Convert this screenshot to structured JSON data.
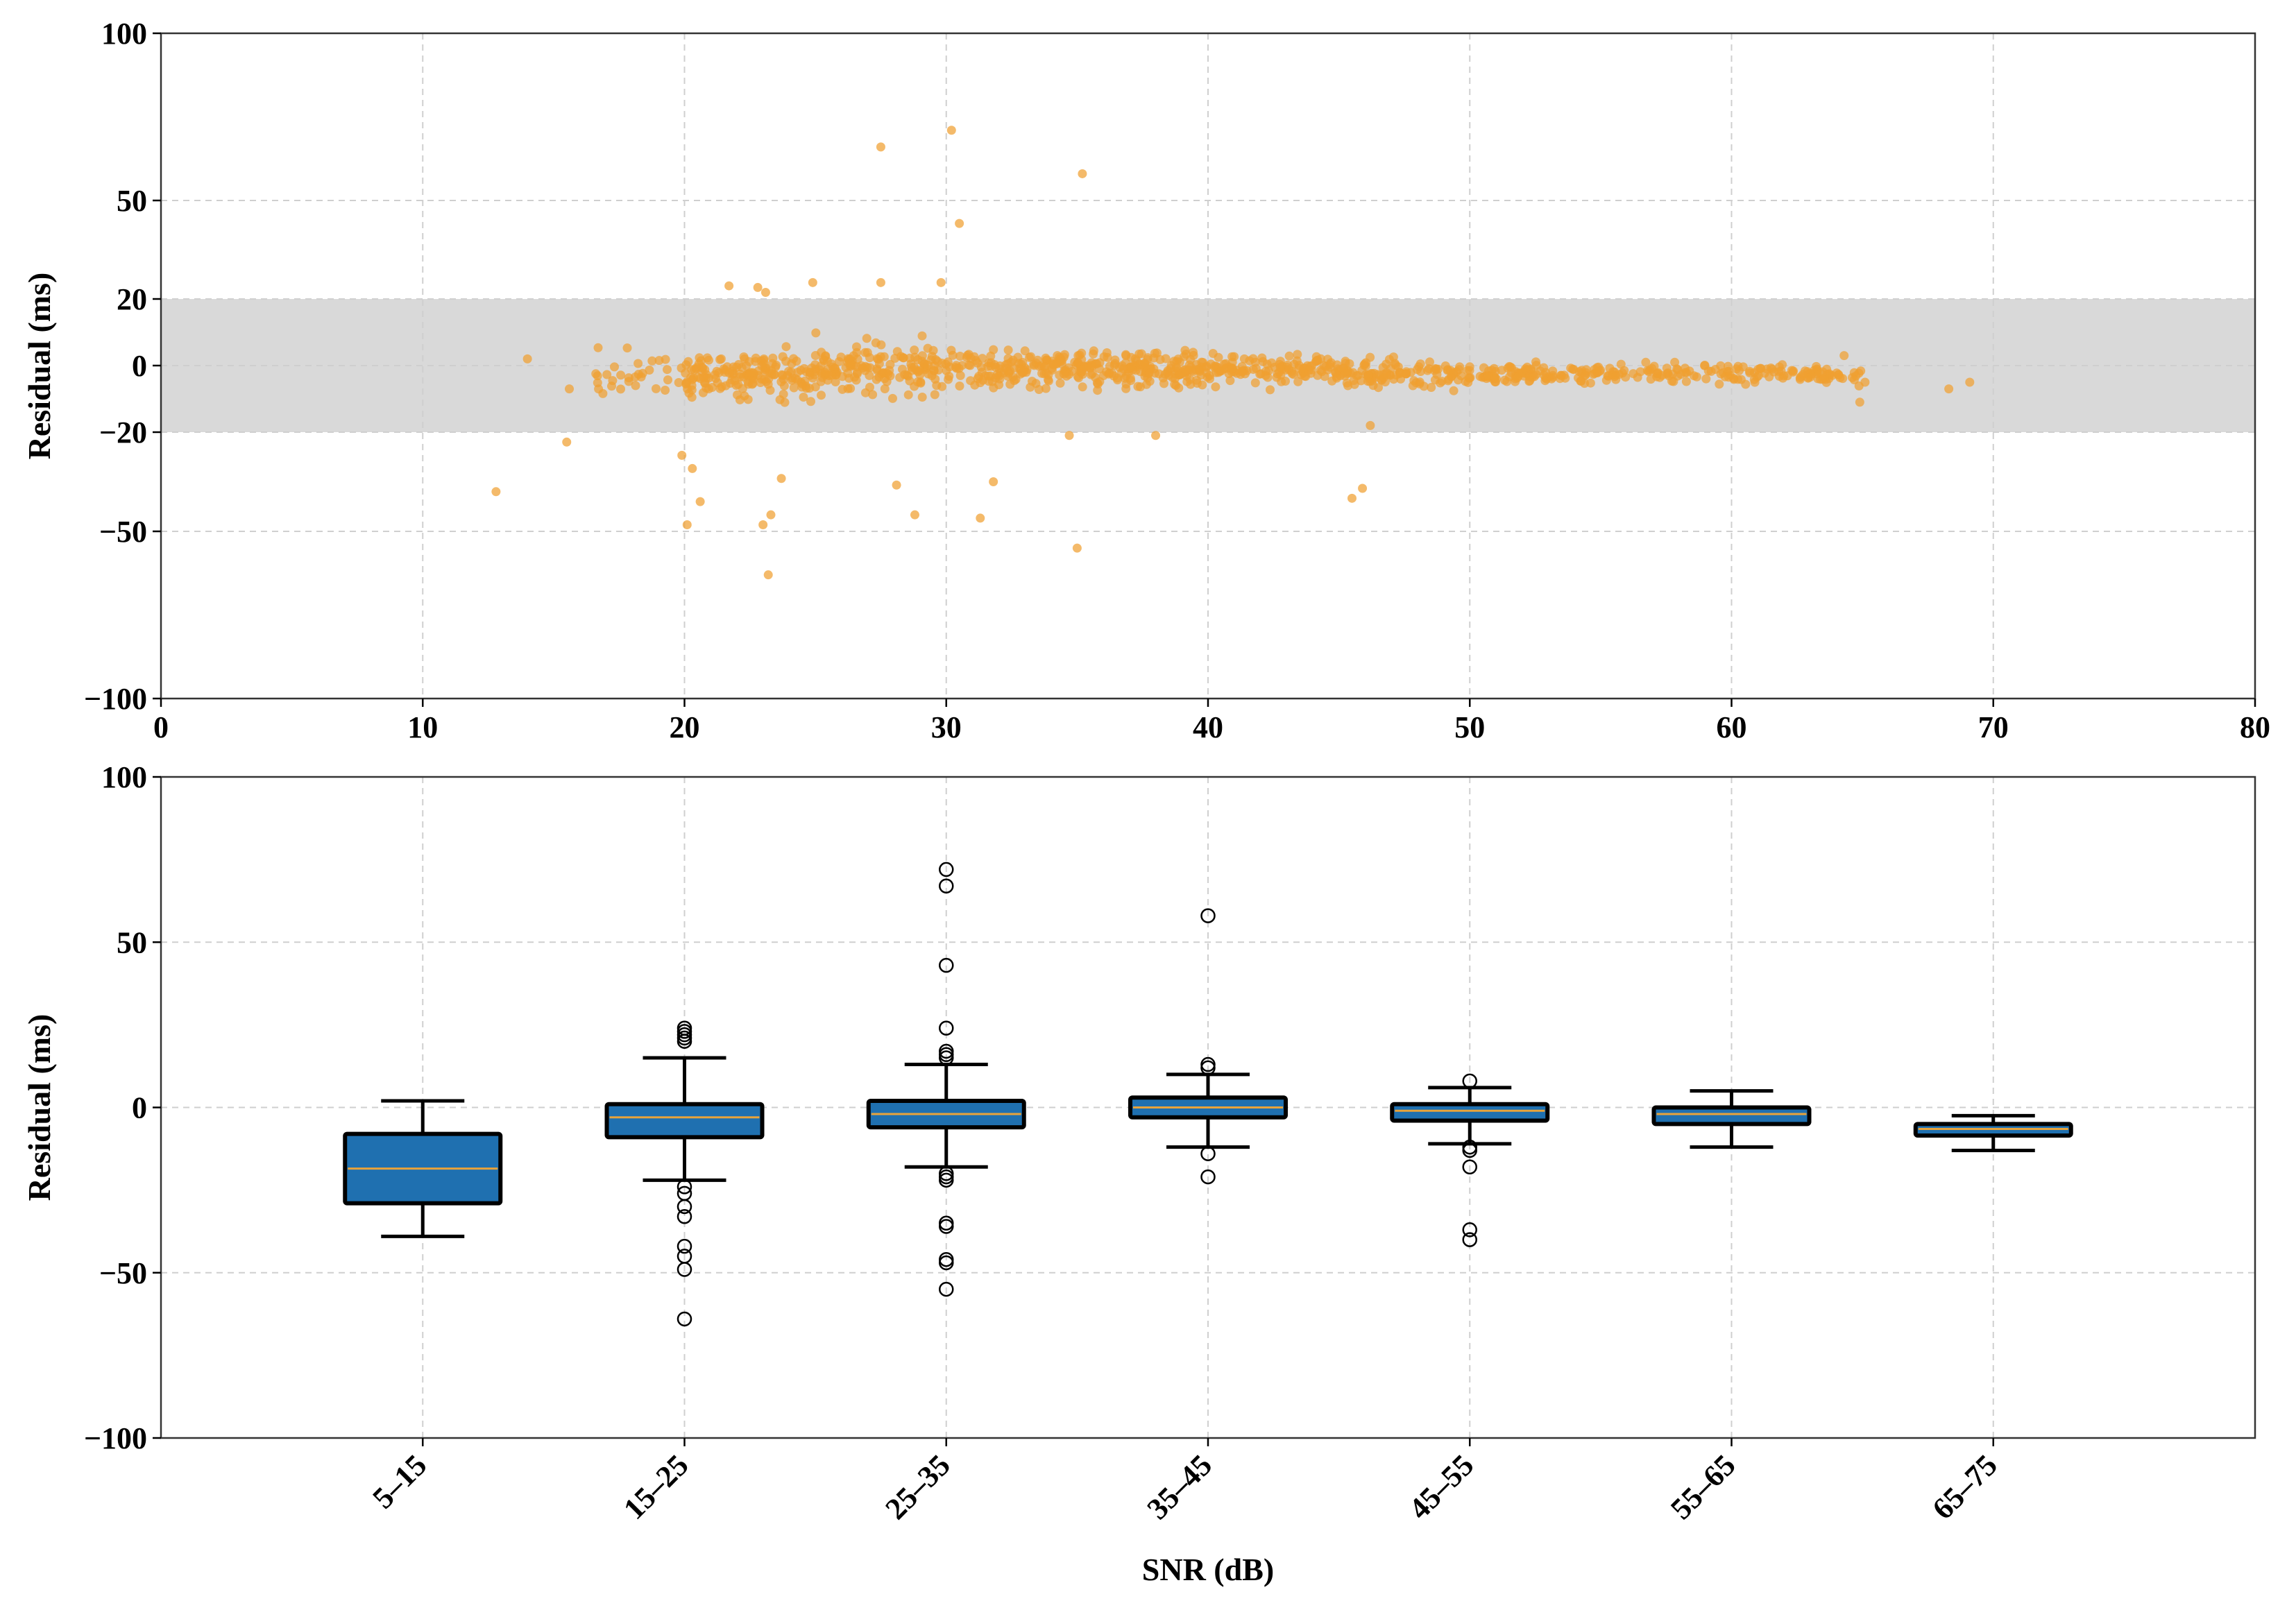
{
  "chart_data": [
    {
      "type": "scatter",
      "name": "residual-vs-snr",
      "xlim": [
        0,
        80
      ],
      "ylim": [
        -100,
        100
      ],
      "y_scale": "symlog-like (linear within ±20, compressed outside)",
      "xticks": [
        "0",
        "10",
        "20",
        "30",
        "40",
        "50",
        "60",
        "70",
        "80"
      ],
      "yticks": [
        "100",
        "50",
        "20",
        "0",
        "−20",
        "−50",
        "−100"
      ],
      "ytick_values": [
        100,
        50,
        20,
        0,
        -20,
        -50,
        -100
      ],
      "ylabel": "Residual (ms)",
      "xlabel": "",
      "grid": true,
      "band": {
        "from": -20,
        "to": 20,
        "color": "#d9d9d9"
      },
      "point_color": "#f0a030",
      "n_dense_points": 1150,
      "outliers": [
        [
          27.5,
          66
        ],
        [
          30.2,
          71
        ],
        [
          35.2,
          58
        ],
        [
          30.5,
          43
        ],
        [
          21.7,
          24
        ],
        [
          22.8,
          23.5
        ],
        [
          23.1,
          22
        ],
        [
          24.9,
          25
        ],
        [
          27.5,
          25
        ],
        [
          29.8,
          25
        ],
        [
          12.8,
          -38
        ],
        [
          15.5,
          -23
        ],
        [
          19.9,
          -27
        ],
        [
          20.3,
          -31
        ],
        [
          20.6,
          -41
        ],
        [
          20.1,
          -48
        ],
        [
          23.0,
          -48
        ],
        [
          23.3,
          -45
        ],
        [
          23.7,
          -34
        ],
        [
          23.2,
          -63
        ],
        [
          28.1,
          -36
        ],
        [
          28.8,
          -45
        ],
        [
          31.3,
          -46
        ],
        [
          31.8,
          -35
        ],
        [
          35.0,
          -55
        ],
        [
          34.7,
          -21
        ],
        [
          38.0,
          -21
        ],
        [
          45.5,
          -40
        ],
        [
          45.9,
          -37
        ],
        [
          46.2,
          -18
        ]
      ]
    },
    {
      "type": "box",
      "name": "residual-by-snr-bin",
      "categories": [
        "5–15",
        "15–25",
        "25–35",
        "35–45",
        "45–55",
        "55–65",
        "65–75"
      ],
      "positions": [
        10,
        20,
        30,
        40,
        50,
        60,
        70
      ],
      "xlim": [
        0,
        80
      ],
      "ylim": [
        -100,
        100
      ],
      "yticks": [
        "100",
        "50",
        "0",
        "−50",
        "−100"
      ],
      "ytick_values": [
        100,
        50,
        0,
        -50,
        -100
      ],
      "ylabel": "Residual (ms)",
      "xlabel": "SNR (dB)",
      "grid": true,
      "box_color": "#1f70b0",
      "median_color": "#e8a33a",
      "boxes": [
        {
          "label": "5–15",
          "whislo": -39,
          "q1": -29,
          "med": -18.5,
          "q3": -8,
          "whishi": 2,
          "fliers": []
        },
        {
          "label": "15–25",
          "whislo": -22,
          "q1": -9,
          "med": -3,
          "q3": 1,
          "whishi": 15,
          "fliers": [
            24,
            23,
            22,
            21,
            20,
            -24,
            -26,
            -30,
            -33,
            -42,
            -45,
            -49,
            -64
          ]
        },
        {
          "label": "25–35",
          "whislo": -18,
          "q1": -6,
          "med": -2,
          "q3": 2,
          "whishi": 13,
          "fliers": [
            72,
            67,
            43,
            24,
            17,
            16,
            15,
            -20,
            -21,
            -22,
            -35,
            -36,
            -46,
            -47,
            -55
          ]
        },
        {
          "label": "35–45",
          "whislo": -12,
          "q1": -3,
          "med": 0,
          "q3": 3,
          "whishi": 10,
          "fliers": [
            58,
            13,
            12,
            -14,
            -21
          ]
        },
        {
          "label": "45–55",
          "whislo": -11,
          "q1": -4,
          "med": -1,
          "q3": 1,
          "whishi": 6,
          "fliers": [
            8,
            -12,
            -13,
            -18,
            -37,
            -40
          ]
        },
        {
          "label": "55–65",
          "whislo": -12,
          "q1": -5,
          "med": -2,
          "q3": 0,
          "whishi": 5,
          "fliers": []
        },
        {
          "label": "65–75",
          "whislo": -13,
          "q1": -8.5,
          "med": -6.5,
          "q3": -5,
          "whishi": -2.5,
          "fliers": []
        }
      ]
    }
  ]
}
